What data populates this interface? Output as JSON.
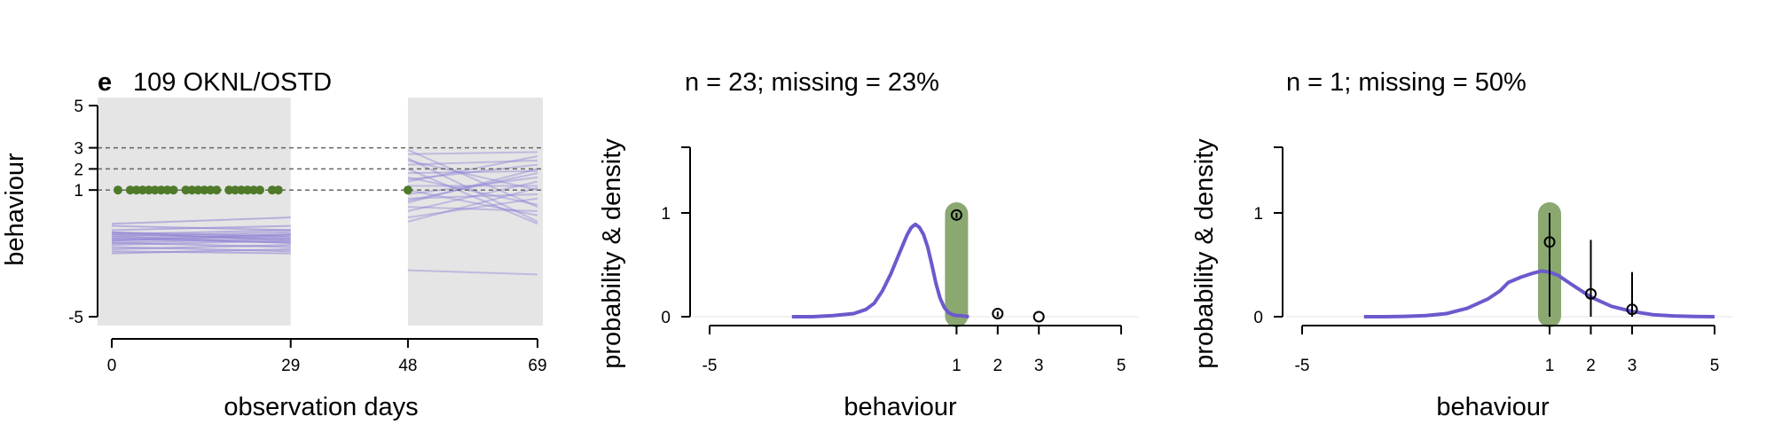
{
  "colors": {
    "panel_bg": "#e5e5e5",
    "purple": "#6a5acd",
    "purple_light": "#8f84d6",
    "green_point": "#4f7a2a",
    "green_band": "#8aa870",
    "dashed": "#666666",
    "zero_line": "#e6e6e6"
  },
  "chart_data": [
    {
      "type": "line",
      "panel_letter": "e",
      "title": "109 OKNL/OSTD",
      "xlabel": "observation days",
      "ylabel": "behaviour",
      "xlim": [
        0,
        69
      ],
      "ylim": [
        -5,
        5
      ],
      "x_ticks": [
        0,
        29,
        48,
        69
      ],
      "y_ticks": [
        -5,
        1,
        2,
        3,
        5
      ],
      "reference_lines_y": [
        1,
        2,
        3
      ],
      "shaded_periods": [
        [
          0,
          29
        ],
        [
          48,
          69
        ]
      ],
      "observed_points": {
        "y": 1,
        "x": [
          1,
          3,
          4,
          5,
          6,
          7,
          8,
          9,
          10,
          12,
          13,
          14,
          15,
          16,
          17,
          19,
          20,
          21,
          22,
          23,
          24,
          26,
          27,
          48
        ]
      },
      "trajectories_period1": {
        "x_range": [
          0,
          29
        ],
        "y_start": [
          -0.6,
          -0.7,
          -0.9,
          -1.0,
          -1.1,
          -1.1,
          -1.2,
          -1.3,
          -1.3,
          -1.4,
          -1.5,
          -1.5,
          -1.6,
          -1.7,
          -1.8,
          -1.9,
          -2.0,
          -1.0,
          -1.2,
          -1.4
        ],
        "y_end": [
          -0.3,
          -0.9,
          -0.7,
          -1.4,
          -0.9,
          -1.3,
          -1.0,
          -1.5,
          -1.1,
          -1.2,
          -1.7,
          -1.3,
          -1.4,
          -1.9,
          -1.6,
          -2.0,
          -1.8,
          -1.2,
          -1.5,
          -1.1
        ]
      },
      "trajectories_period2": {
        "x_range": [
          48,
          69
        ],
        "y_start": [
          2.9,
          2.7,
          2.4,
          2.2,
          2.0,
          1.8,
          1.6,
          1.4,
          1.2,
          1.0,
          0.8,
          0.6,
          0.4,
          0.2,
          0.0,
          -0.3,
          -0.5,
          2.5,
          1.5,
          0.5,
          -2.8
        ],
        "y_end": [
          0.2,
          2.8,
          1.0,
          2.4,
          -0.6,
          1.9,
          0.3,
          2.6,
          1.2,
          -0.2,
          1.6,
          0.8,
          2.0,
          0.0,
          1.4,
          0.6,
          1.1,
          -0.5,
          2.2,
          1.8,
          -3.0
        ]
      }
    },
    {
      "type": "line",
      "title": "n = 23; missing = 23%",
      "xlabel": "behaviour",
      "ylabel": "probability & density",
      "xlim": [
        -5,
        5
      ],
      "ylim": [
        0,
        1.6
      ],
      "x_ticks": [
        -5,
        1,
        2,
        3,
        5
      ],
      "y_ticks": [
        0,
        1
      ],
      "highlight_x": 1,
      "density": {
        "x": [
          -3.0,
          -2.5,
          -2.0,
          -1.5,
          -1.2,
          -1.0,
          -0.8,
          -0.6,
          -0.4,
          -0.2,
          -0.1,
          0.0,
          0.1,
          0.2,
          0.3,
          0.4,
          0.5,
          0.6,
          0.7,
          0.8,
          0.9,
          1.0,
          1.1,
          1.3
        ],
        "y": [
          0.0,
          0.0,
          0.01,
          0.03,
          0.07,
          0.13,
          0.25,
          0.41,
          0.6,
          0.79,
          0.86,
          0.89,
          0.86,
          0.79,
          0.67,
          0.5,
          0.32,
          0.18,
          0.09,
          0.04,
          0.02,
          0.01,
          0.01,
          0.0
        ]
      },
      "probabilities": [
        {
          "x": 1,
          "y": 0.98,
          "ci": [
            0.95,
            1.0
          ]
        },
        {
          "x": 2,
          "y": 0.03,
          "ci": [
            0.0,
            0.05
          ]
        },
        {
          "x": 3,
          "y": 0.0,
          "ci": [
            0.0,
            0.0
          ]
        }
      ]
    },
    {
      "type": "line",
      "title": "n = 1; missing = 50%",
      "xlabel": "behaviour",
      "ylabel": "probability & density",
      "xlim": [
        -5,
        5
      ],
      "ylim": [
        0,
        1.6
      ],
      "x_ticks": [
        -5,
        1,
        2,
        3,
        5
      ],
      "y_ticks": [
        0,
        1
      ],
      "highlight_x": 1,
      "density": {
        "x": [
          -3.5,
          -3.0,
          -2.5,
          -2.0,
          -1.5,
          -1.0,
          -0.5,
          -0.2,
          0.0,
          0.3,
          0.6,
          0.8,
          1.0,
          1.2,
          1.5,
          2.0,
          2.5,
          3.0,
          3.5,
          4.0,
          4.5,
          5.0
        ],
        "y": [
          0.0,
          0.0,
          0.003,
          0.01,
          0.03,
          0.08,
          0.17,
          0.25,
          0.33,
          0.38,
          0.42,
          0.44,
          0.43,
          0.4,
          0.32,
          0.19,
          0.1,
          0.05,
          0.02,
          0.008,
          0.002,
          0.0
        ]
      },
      "probabilities": [
        {
          "x": 1,
          "y": 0.72,
          "ci": [
            0.0,
            1.0
          ]
        },
        {
          "x": 2,
          "y": 0.22,
          "ci": [
            0.0,
            0.74
          ]
        },
        {
          "x": 3,
          "y": 0.07,
          "ci": [
            0.0,
            0.43
          ]
        }
      ]
    }
  ]
}
